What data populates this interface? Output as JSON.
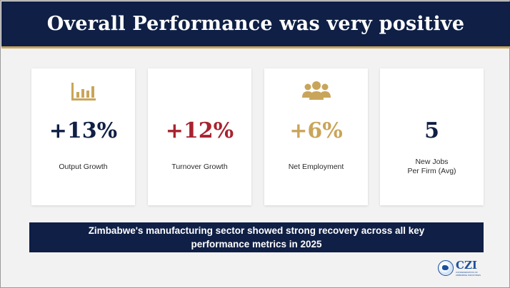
{
  "title": "Overall Performance was very positive",
  "colors": {
    "navy": "#0f1f45",
    "gold": "#c9a55a",
    "red": "#a8232f",
    "background": "#f2f2f2"
  },
  "cards": [
    {
      "icon": "bar-chart-icon",
      "value": "+13%",
      "label": "Output Growth",
      "color": "#0f1f45"
    },
    {
      "icon": "",
      "value": "+12%",
      "label": "Turnover Growth",
      "color": "#a8232f"
    },
    {
      "icon": "people-group-icon",
      "value": "+6%",
      "label": "Net Employment",
      "color": "#c9a55a"
    },
    {
      "icon": "",
      "value": "5",
      "label_line1": "New Jobs",
      "label_line2": "Per Firm (Avg)",
      "color": "#0f1f45"
    }
  ],
  "banner": {
    "line1": "Zimbabwe's manufacturing sector showed strong recovery across all key",
    "line2": "performance metrics in 2025"
  },
  "logo": {
    "text": "CZI",
    "tagline": "CONFEDERATION OF ZIMBABWE INDUSTRIES"
  }
}
